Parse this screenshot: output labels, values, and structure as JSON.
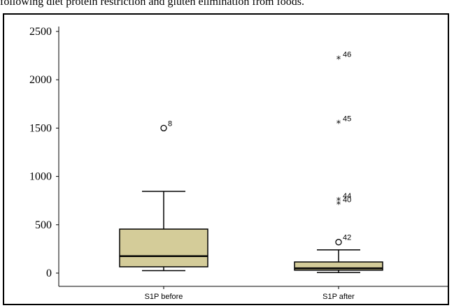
{
  "caption": "following diet protein restriction and gluten elimination from foods.",
  "colors": {
    "box_fill": "#d4cc99",
    "stroke": "#000000"
  },
  "chart_data": {
    "type": "box",
    "title": "",
    "xlabel": "",
    "ylabel": "",
    "ylim": [
      -140,
      2600
    ],
    "yticks": [
      0,
      500,
      1000,
      1500,
      2000,
      2500
    ],
    "ytick_labels": [
      "0",
      "500",
      "1000",
      "1500",
      "2000",
      "2500"
    ],
    "categories": [
      "S1P before",
      "S1P after"
    ],
    "boxes": [
      {
        "category": "S1P before",
        "whisker_low": 25,
        "q1": 65,
        "median": 175,
        "q3": 455,
        "whisker_high": 845,
        "outliers": [
          {
            "value": 1500,
            "label": "8",
            "marker": "o"
          }
        ]
      },
      {
        "category": "S1P after",
        "whisker_low": 5,
        "q1": 30,
        "median": 50,
        "q3": 115,
        "whisker_high": 240,
        "outliers": [
          {
            "value": 320,
            "label": "42",
            "marker": "o"
          },
          {
            "value": 710,
            "label": "40",
            "marker": "*"
          },
          {
            "value": 750,
            "label": "44",
            "marker": "*"
          },
          {
            "value": 1550,
            "label": "45",
            "marker": "*"
          },
          {
            "value": 2215,
            "label": "46",
            "marker": "*"
          }
        ]
      }
    ]
  }
}
